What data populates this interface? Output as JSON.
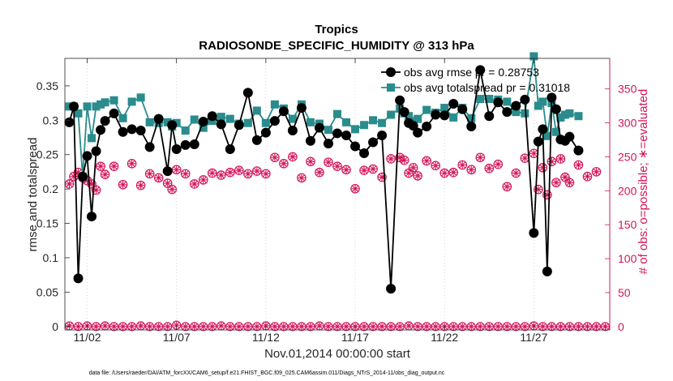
{
  "chart_data": {
    "type": "line",
    "title": "Tropics",
    "subtitle": "RADIOSONDE_SPECIFIC_HUMIDITY @ 313 hPa",
    "xlabel": "Nov.01,2014 00:00:00 start",
    "ylabel": "rmse and totalspread",
    "y2label": "# of obs: o=possible; ∗=evaluated",
    "footnote": "data file: /Users/raeder/DAI/ATM_forcXX/CAM6_setup/f.e21.FHIST_BGC.f09_025.CAM6assim.011/Diags_NTrS_2014-11/obs_diag_output.nc",
    "xlim": [
      0.75,
      31.25
    ],
    "ylim": [
      -0.005,
      0.39
    ],
    "y2lim": [
      -5,
      395
    ],
    "x_ticks": [
      2,
      7,
      12,
      17,
      22,
      27
    ],
    "x_tick_labels": [
      "11/02",
      "11/07",
      "11/12",
      "11/17",
      "11/22",
      "11/27"
    ],
    "y_ticks": [
      0,
      0.05,
      0.1,
      0.15,
      0.2,
      0.25,
      0.3,
      0.35
    ],
    "y_tick_labels": [
      "0",
      "0.05",
      "0.1",
      "0.15",
      "0.2",
      "0.25",
      "0.3",
      "0.35"
    ],
    "y2_ticks": [
      0,
      50,
      100,
      150,
      200,
      250,
      300,
      350
    ],
    "y2_tick_labels": [
      "0",
      "50",
      "100",
      "150",
      "200",
      "250",
      "300",
      "350"
    ],
    "legend_position": "top-right",
    "colors": {
      "rmse": "#000000",
      "spread": "#2a8c8c",
      "obs": "#d4145a",
      "axis": "#262626"
    },
    "x": [
      1.0,
      1.25,
      1.5,
      1.75,
      2.0,
      2.25,
      2.5,
      2.75,
      3.0,
      3.5,
      4.0,
      4.5,
      5.0,
      5.5,
      6.0,
      6.5,
      6.75,
      7.0,
      7.5,
      8.0,
      8.5,
      9.0,
      9.5,
      10.0,
      10.5,
      11.0,
      11.5,
      12.0,
      12.5,
      13.0,
      13.5,
      14.0,
      14.5,
      15.0,
      15.5,
      16.0,
      16.5,
      17.0,
      17.5,
      18.0,
      18.5,
      19.0,
      19.5,
      19.75,
      20.0,
      20.25,
      20.5,
      21.0,
      21.5,
      22.0,
      22.5,
      23.0,
      23.5,
      24.0,
      24.5,
      25.0,
      25.5,
      26.0,
      26.5,
      27.0,
      27.25,
      27.5,
      27.75,
      28.0,
      28.25,
      28.5,
      28.75,
      29.0,
      29.5,
      30.0,
      30.5
    ],
    "series": [
      {
        "name": "obs avg rmse  pr = 0.28753",
        "legend_label": "obs avg rmse  pr = 0.28753",
        "values": [
          0.297,
          0.32,
          0.07,
          0.218,
          0.248,
          0.16,
          0.255,
          0.286,
          0.299,
          0.31,
          0.283,
          0.287,
          0.285,
          0.261,
          0.302,
          0.226,
          0.293,
          0.258,
          0.264,
          0.265,
          0.298,
          0.306,
          0.294,
          0.258,
          0.293,
          0.34,
          0.271,
          0.282,
          0.299,
          0.313,
          0.285,
          0.318,
          0.27,
          0.289,
          0.266,
          0.281,
          0.278,
          0.262,
          0.252,
          0.268,
          0.278,
          0.055,
          0.329,
          0.312,
          0.296,
          0.292,
          0.282,
          0.291,
          0.308,
          0.307,
          0.324,
          0.316,
          0.291,
          0.373,
          0.306,
          0.326,
          0.312,
          0.321,
          0.33,
          0.136,
          0.269,
          0.287,
          0.08,
          0.333,
          0.316,
          0.272,
          0.27,
          0.276,
          0.256,
          null,
          null
        ]
      },
      {
        "name": "obs avg totalspread pr = 0.31018",
        "legend_label": "obs avg totalspread pr = 0.31018",
        "values": [
          0.32,
          0.32,
          0.31,
          0.218,
          0.32,
          0.274,
          0.32,
          0.323,
          0.326,
          0.329,
          0.303,
          0.327,
          0.333,
          0.297,
          0.296,
          0.297,
          0.291,
          0.296,
          0.285,
          0.301,
          0.289,
          0.299,
          0.305,
          0.302,
          0.295,
          0.296,
          0.314,
          0.296,
          0.323,
          0.317,
          0.302,
          0.323,
          0.297,
          0.295,
          0.286,
          0.309,
          0.297,
          0.287,
          0.293,
          0.3,
          0.296,
          0.308,
          0.317,
          0.31,
          0.306,
          0.299,
          0.302,
          0.315,
          0.311,
          0.318,
          0.304,
          0.318,
          0.303,
          0.331,
          0.331,
          0.33,
          0.327,
          0.312,
          0.31,
          0.393,
          0.321,
          0.327,
          0.277,
          0.325,
          0.283,
          0.304,
          0.308,
          0.31,
          0.306,
          null,
          null
        ]
      },
      {
        "name": "# of obs possible",
        "legend_label": "",
        "values": [
          210,
          221,
          227,
          219,
          215,
          210,
          201,
          236,
          224,
          236,
          209,
          240,
          208,
          225,
          219,
          211,
          202,
          231,
          225,
          210,
          216,
          226,
          223,
          227,
          230,
          225,
          229,
          225,
          249,
          240,
          250,
          219,
          243,
          227,
          242,
          236,
          231,
          203,
          230,
          232,
          220,
          247,
          249,
          245,
          226,
          234,
          222,
          244,
          237,
          226,
          227,
          238,
          231,
          249,
          233,
          239,
          206,
          226,
          248,
          255,
          202,
          234,
          194,
          243,
          212,
          247,
          220,
          212,
          238,
          221,
          228
        ]
      },
      {
        "name": "# of obs evaluated",
        "legend_label": "",
        "values": [
          210,
          221,
          227,
          219,
          215,
          210,
          201,
          236,
          224,
          236,
          209,
          240,
          208,
          225,
          219,
          211,
          202,
          231,
          225,
          210,
          216,
          226,
          223,
          227,
          230,
          225,
          229,
          225,
          249,
          240,
          250,
          219,
          243,
          227,
          242,
          236,
          231,
          203,
          230,
          232,
          220,
          247,
          249,
          245,
          226,
          234,
          222,
          244,
          237,
          226,
          227,
          238,
          231,
          249,
          233,
          239,
          206,
          226,
          248,
          255,
          202,
          234,
          194,
          243,
          212,
          247,
          220,
          212,
          238,
          221,
          228
        ]
      }
    ],
    "obs_zero_x": [
      1,
      1.5,
      2,
      2.5,
      3,
      3.5,
      4,
      4.5,
      5,
      5.5,
      6,
      6.5,
      7,
      7.5,
      8,
      8.5,
      9,
      9.5,
      10,
      10.5,
      11,
      11.5,
      12,
      12.5,
      13,
      13.5,
      14,
      14.5,
      15,
      15.5,
      16,
      16.5,
      17,
      17.5,
      18,
      18.5,
      19,
      19.5,
      20,
      20.5,
      21,
      21.5,
      22,
      22.5,
      23,
      23.5,
      24,
      24.5,
      25,
      25.5,
      26,
      26.5,
      27,
      27.5,
      28,
      28.5,
      29,
      29.5,
      30,
      30.5,
      31
    ],
    "obs_zero_values": [
      1,
      0,
      1,
      0,
      1,
      0,
      0,
      0,
      1,
      0,
      0,
      0,
      2,
      0,
      0,
      0,
      0,
      1,
      0,
      0,
      0,
      0,
      1,
      0,
      0,
      0,
      0,
      0,
      1,
      0,
      0,
      0,
      0,
      0,
      0,
      0,
      0,
      0,
      1,
      0,
      0,
      0,
      0,
      0,
      0,
      0,
      0,
      0,
      0,
      0,
      0,
      0,
      1,
      0,
      0,
      0,
      0,
      0,
      0,
      0,
      0
    ]
  }
}
